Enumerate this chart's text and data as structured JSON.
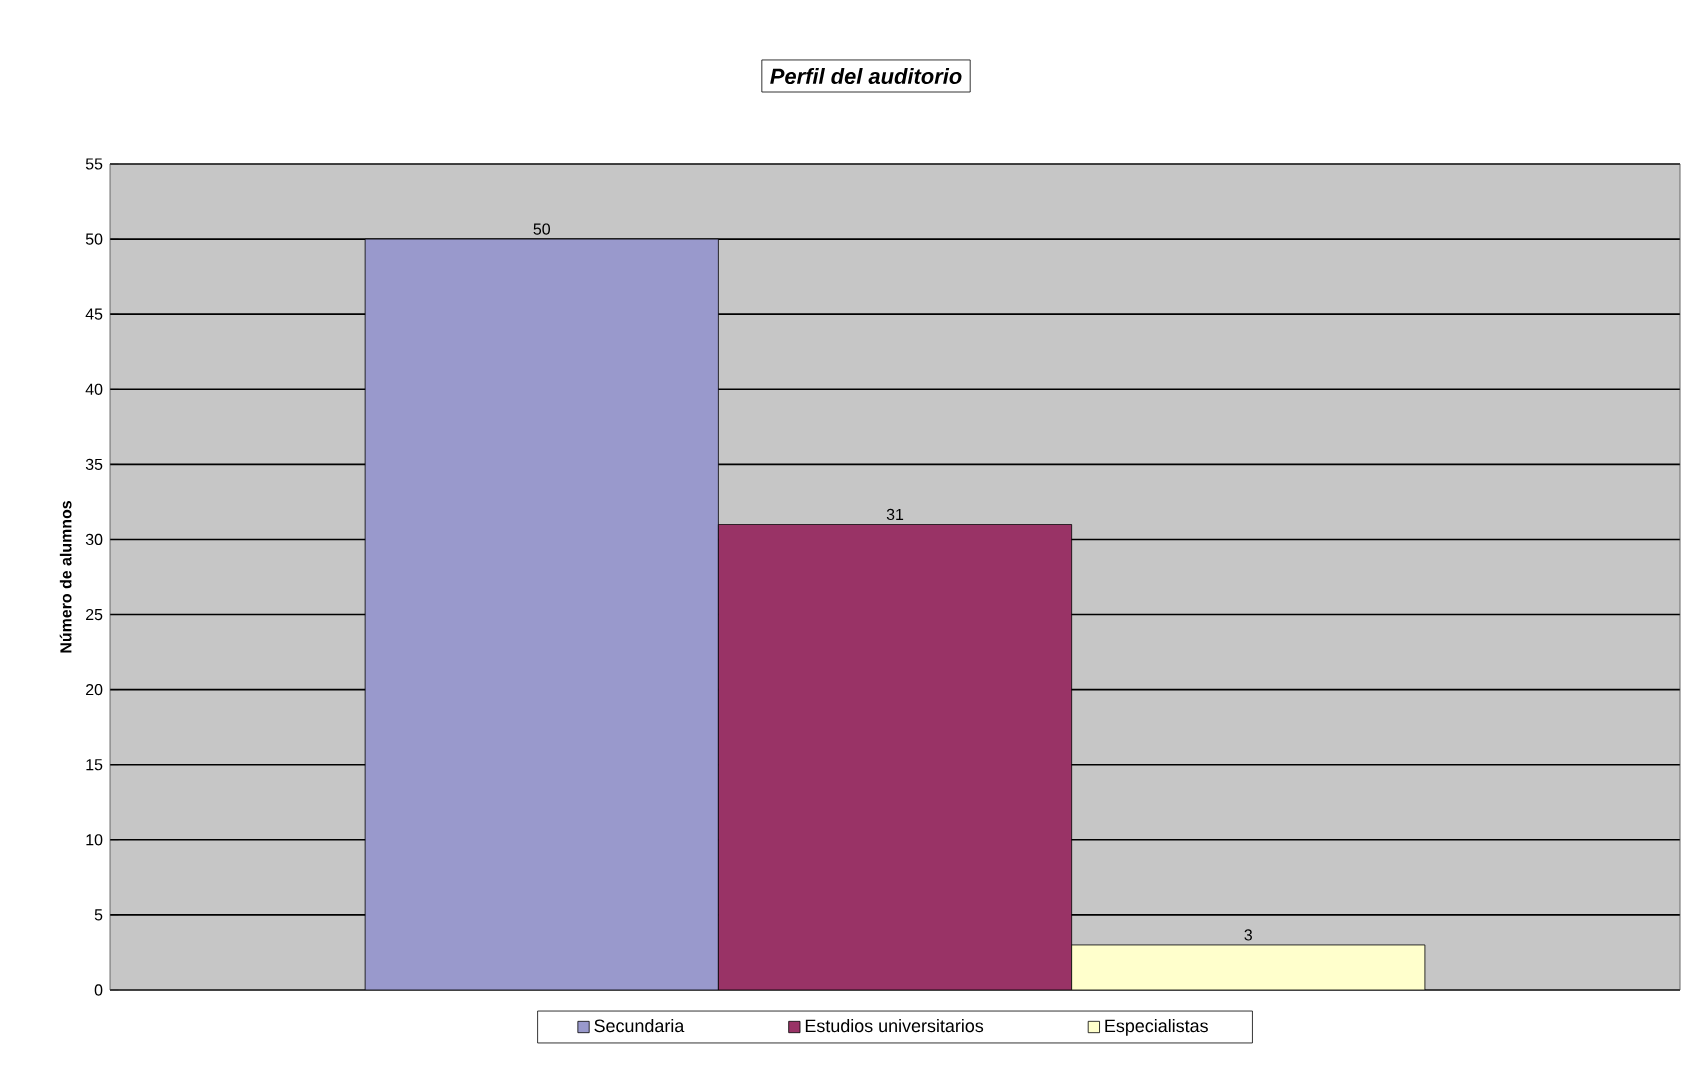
{
  "chart_data": {
    "type": "bar",
    "title": "Perfil del auditorio",
    "ylabel": "Número de alumnos",
    "categories": [
      null
    ],
    "series": [
      {
        "name": "Secundaria",
        "color": "#9999cc",
        "values": [
          50
        ]
      },
      {
        "name": "Estudios universitarios",
        "color": "#993366",
        "values": [
          31
        ]
      },
      {
        "name": "Especialistas",
        "color": "#ffffcc",
        "values": [
          3
        ]
      }
    ],
    "ylim": [
      0,
      55
    ],
    "yticks": [
      0,
      5,
      10,
      15,
      20,
      25,
      30,
      35,
      40,
      45,
      50,
      55
    ],
    "grid": "y",
    "legend": "bottom",
    "data_labels": true
  }
}
